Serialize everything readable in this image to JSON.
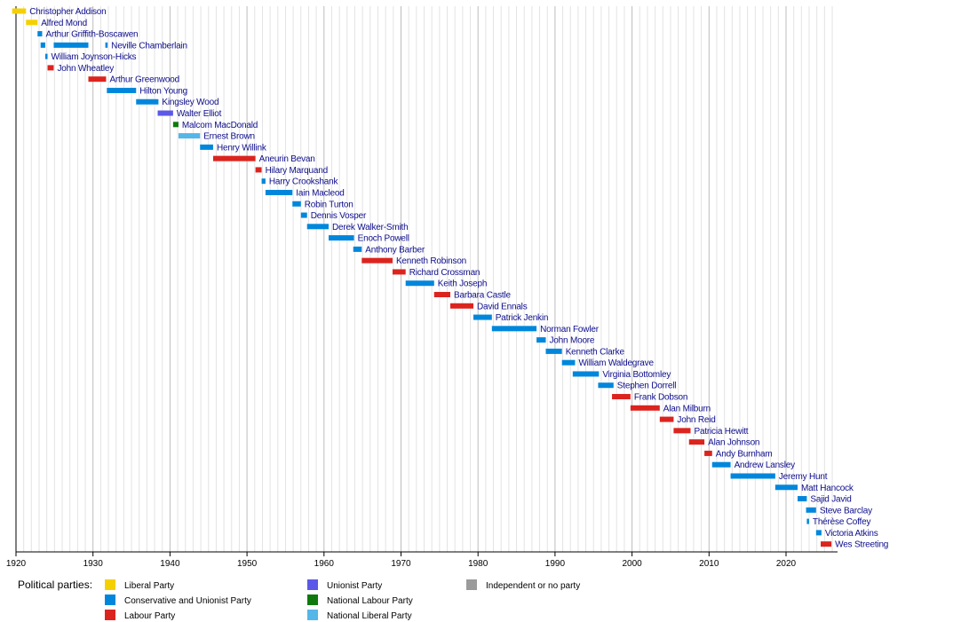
{
  "chart_data": {
    "type": "timeline",
    "xlim": [
      1919,
      2027
    ],
    "ticks": [
      1920,
      1930,
      1940,
      1950,
      1960,
      1970,
      1980,
      1990,
      2000,
      2010,
      2020
    ],
    "parties": [
      {
        "key": "lib",
        "name": "Liberal Party",
        "color": "#f5d000"
      },
      {
        "key": "con",
        "name": "Conservative and Unionist Party",
        "color": "#0087dc"
      },
      {
        "key": "lab",
        "name": "Labour Party",
        "color": "#dc241f"
      },
      {
        "key": "uni",
        "name": "Unionist Party",
        "color": "#5b58e8"
      },
      {
        "key": "nlab",
        "name": "National Labour Party",
        "color": "#0e7a0e"
      },
      {
        "key": "nlib",
        "name": "National Liberal Party",
        "color": "#55b6e8"
      },
      {
        "key": "ind",
        "name": "Independent or no party",
        "color": "#9b9b9b"
      }
    ],
    "rows": [
      {
        "name": "Christopher Addison",
        "terms": [
          {
            "party": "lib",
            "start": 1919.5,
            "end": 1921.3
          }
        ]
      },
      {
        "name": "Alfred Mond",
        "terms": [
          {
            "party": "lib",
            "start": 1921.3,
            "end": 1922.8
          }
        ]
      },
      {
        "name": "Arthur Griffith-Boscawen",
        "terms": [
          {
            "party": "con",
            "start": 1922.8,
            "end": 1923.4
          }
        ]
      },
      {
        "name": "Neville Chamberlain",
        "terms": [
          {
            "party": "con",
            "start": 1923.2,
            "end": 1923.8
          },
          {
            "party": "con",
            "start": 1924.9,
            "end": 1929.4
          },
          {
            "party": "con",
            "start": 1931.6,
            "end": 1931.9
          }
        ]
      },
      {
        "name": "William Joynson-Hicks",
        "terms": [
          {
            "party": "con",
            "start": 1923.8,
            "end": 1924.1
          }
        ]
      },
      {
        "name": "John Wheatley",
        "terms": [
          {
            "party": "lab",
            "start": 1924.1,
            "end": 1924.9
          }
        ]
      },
      {
        "name": "Arthur Greenwood",
        "terms": [
          {
            "party": "lab",
            "start": 1929.4,
            "end": 1931.7
          }
        ]
      },
      {
        "name": "Hilton Young",
        "terms": [
          {
            "party": "con",
            "start": 1931.8,
            "end": 1935.6
          }
        ]
      },
      {
        "name": "Kingsley Wood",
        "terms": [
          {
            "party": "con",
            "start": 1935.6,
            "end": 1938.5
          }
        ]
      },
      {
        "name": "Walter Elliot",
        "terms": [
          {
            "party": "uni",
            "start": 1938.4,
            "end": 1940.4
          }
        ]
      },
      {
        "name": "Malcom MacDonald",
        "terms": [
          {
            "party": "nlab",
            "start": 1940.4,
            "end": 1941.1
          }
        ]
      },
      {
        "name": "Ernest Brown",
        "terms": [
          {
            "party": "nlib",
            "start": 1941.1,
            "end": 1943.9
          }
        ]
      },
      {
        "name": "Henry Willink",
        "terms": [
          {
            "party": "con",
            "start": 1943.9,
            "end": 1945.6
          }
        ]
      },
      {
        "name": "Aneurin Bevan",
        "terms": [
          {
            "party": "lab",
            "start": 1945.6,
            "end": 1951.1
          }
        ]
      },
      {
        "name": "Hilary Marquand",
        "terms": [
          {
            "party": "lab",
            "start": 1951.1,
            "end": 1951.9
          }
        ]
      },
      {
        "name": "Harry Crookshank",
        "terms": [
          {
            "party": "con",
            "start": 1951.9,
            "end": 1952.4
          }
        ]
      },
      {
        "name": "Iain Macleod",
        "terms": [
          {
            "party": "con",
            "start": 1952.4,
            "end": 1955.9
          }
        ]
      },
      {
        "name": "Robin Turton",
        "terms": [
          {
            "party": "con",
            "start": 1955.9,
            "end": 1957.0
          }
        ]
      },
      {
        "name": "Dennis Vosper",
        "terms": [
          {
            "party": "con",
            "start": 1957.0,
            "end": 1957.8
          }
        ]
      },
      {
        "name": "Derek Walker-Smith",
        "terms": [
          {
            "party": "con",
            "start": 1957.8,
            "end": 1960.6
          }
        ]
      },
      {
        "name": "Enoch Powell",
        "terms": [
          {
            "party": "con",
            "start": 1960.6,
            "end": 1963.9
          }
        ]
      },
      {
        "name": "Anthony Barber",
        "terms": [
          {
            "party": "con",
            "start": 1963.8,
            "end": 1964.9
          }
        ]
      },
      {
        "name": "Kenneth Robinson",
        "terms": [
          {
            "party": "lab",
            "start": 1964.9,
            "end": 1968.9
          }
        ]
      },
      {
        "name": "Richard Crossman",
        "terms": [
          {
            "party": "lab",
            "start": 1968.9,
            "end": 1970.6
          }
        ]
      },
      {
        "name": "Keith Joseph",
        "terms": [
          {
            "party": "con",
            "start": 1970.6,
            "end": 1974.3
          }
        ]
      },
      {
        "name": "Barbara Castle",
        "terms": [
          {
            "party": "lab",
            "start": 1974.3,
            "end": 1976.4
          }
        ]
      },
      {
        "name": "David Ennals",
        "terms": [
          {
            "party": "lab",
            "start": 1976.4,
            "end": 1979.4
          }
        ]
      },
      {
        "name": "Patrick Jenkin",
        "terms": [
          {
            "party": "con",
            "start": 1979.4,
            "end": 1981.8
          }
        ]
      },
      {
        "name": "Norman Fowler",
        "terms": [
          {
            "party": "con",
            "start": 1981.8,
            "end": 1987.6
          }
        ]
      },
      {
        "name": "John Moore",
        "terms": [
          {
            "party": "con",
            "start": 1987.6,
            "end": 1988.8
          }
        ]
      },
      {
        "name": "Kenneth Clarke",
        "terms": [
          {
            "party": "con",
            "start": 1988.8,
            "end": 1990.9
          }
        ]
      },
      {
        "name": "William Waldegrave",
        "terms": [
          {
            "party": "con",
            "start": 1990.9,
            "end": 1992.6
          }
        ]
      },
      {
        "name": "Virginia Bottomley",
        "terms": [
          {
            "party": "con",
            "start": 1992.3,
            "end": 1995.7
          }
        ]
      },
      {
        "name": "Stephen Dorrell",
        "terms": [
          {
            "party": "con",
            "start": 1995.6,
            "end": 1997.6
          }
        ]
      },
      {
        "name": "Frank Dobson",
        "terms": [
          {
            "party": "lab",
            "start": 1997.4,
            "end": 1999.8
          }
        ]
      },
      {
        "name": "Alan Milburn",
        "terms": [
          {
            "party": "lab",
            "start": 1999.8,
            "end": 2003.6
          }
        ]
      },
      {
        "name": "John Reid",
        "terms": [
          {
            "party": "lab",
            "start": 2003.6,
            "end": 2005.4
          }
        ]
      },
      {
        "name": "Patricia Hewitt",
        "terms": [
          {
            "party": "lab",
            "start": 2005.4,
            "end": 2007.6
          }
        ]
      },
      {
        "name": "Alan Johnson",
        "terms": [
          {
            "party": "lab",
            "start": 2007.4,
            "end": 2009.4
          }
        ]
      },
      {
        "name": "Andy Burnham",
        "terms": [
          {
            "party": "lab",
            "start": 2009.4,
            "end": 2010.4
          }
        ]
      },
      {
        "name": "Andrew Lansley",
        "terms": [
          {
            "party": "con",
            "start": 2010.4,
            "end": 2012.8
          }
        ]
      },
      {
        "name": "Jeremy Hunt",
        "terms": [
          {
            "party": "con",
            "start": 2012.8,
            "end": 2018.6
          }
        ]
      },
      {
        "name": "Matt Hancock",
        "terms": [
          {
            "party": "con",
            "start": 2018.6,
            "end": 2021.5
          }
        ]
      },
      {
        "name": "Sajid Javid",
        "terms": [
          {
            "party": "con",
            "start": 2021.5,
            "end": 2022.7
          }
        ]
      },
      {
        "name": "Steve Barclay",
        "terms": [
          {
            "party": "con",
            "start": 2022.6,
            "end": 2023.9
          }
        ]
      },
      {
        "name": "Thérèse Coffey",
        "terms": [
          {
            "party": "con",
            "start": 2022.7,
            "end": 2022.9
          }
        ]
      },
      {
        "name": "Victoria Atkins",
        "terms": [
          {
            "party": "con",
            "start": 2023.9,
            "end": 2024.6
          }
        ]
      },
      {
        "name": "Wes Streeting",
        "terms": [
          {
            "party": "lab",
            "start": 2024.5,
            "end": 2025.9
          }
        ]
      }
    ]
  },
  "legend": {
    "title": "Political parties:",
    "items": [
      {
        "label": "Liberal Party",
        "color": "#f5d000"
      },
      {
        "label": "Conservative and Unionist Party",
        "color": "#0087dc"
      },
      {
        "label": "Labour Party",
        "color": "#dc241f"
      },
      {
        "label": "Unionist Party",
        "color": "#5b58e8"
      },
      {
        "label": "National Labour Party",
        "color": "#0e7a0e"
      },
      {
        "label": "National Liberal Party",
        "color": "#55b6e8"
      },
      {
        "label": "Independent or no party",
        "color": "#9b9b9b"
      }
    ]
  }
}
